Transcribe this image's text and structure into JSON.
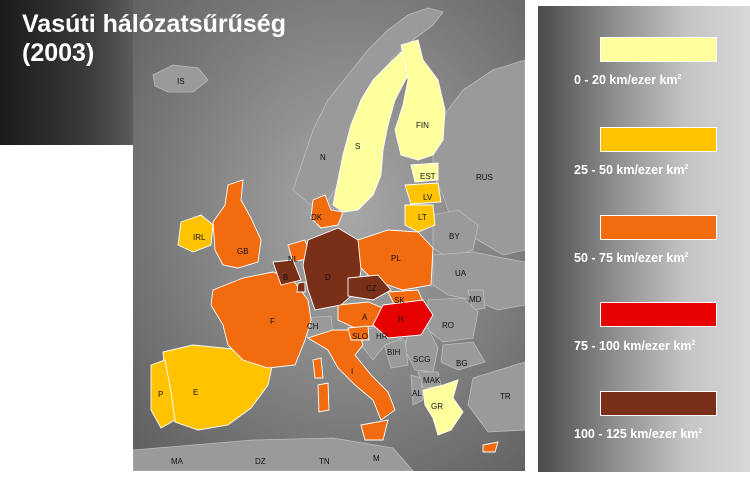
{
  "title": {
    "line1": "Vasúti hálózatsűrűség",
    "line2": "(2003)"
  },
  "legend": [
    {
      "label": "0 - 20 km/ezer km",
      "sup": "2",
      "color": "#ffff9e"
    },
    {
      "label": "25 - 50 km/ezer km",
      "sup": "2",
      "color": "#ffc300"
    },
    {
      "label": "50 - 75 km/ezer km",
      "sup": "2",
      "color": "#f26b0f"
    },
    {
      "label": "75 - 100 km/ezer km",
      "sup": "2",
      "color": "#e60000"
    },
    {
      "label": "100 - 125 km/ezer km",
      "sup": "2",
      "color": "#7a3018"
    }
  ],
  "countries": {
    "IS": "IS",
    "N": "N",
    "S": "S",
    "FIN": "FIN",
    "EST": "EST",
    "LV": "LV",
    "LT": "LT",
    "RUS": "RUS",
    "BY": "BY",
    "UA": "UA",
    "MD": "MD",
    "RO": "RO",
    "BG": "BG",
    "TR": "TR",
    "DK": "DK",
    "IRL": "IRL",
    "GB": "GB",
    "NL": "NL",
    "B": "B",
    "D": "D",
    "PL": "PL",
    "CZ": "CZ",
    "SK": "SK",
    "A": "A",
    "H": "H",
    "F": "F",
    "CH": "CH",
    "SLO": "SLO",
    "HR": "HR",
    "BIH": "BIH",
    "SCG": "SCG",
    "MAK": "MAK",
    "AL": "AL",
    "GR": "GR",
    "I": "I",
    "E": "E",
    "P": "P",
    "MA": "MA",
    "DZ": "DZ",
    "TN": "TN",
    "M": "M"
  }
}
